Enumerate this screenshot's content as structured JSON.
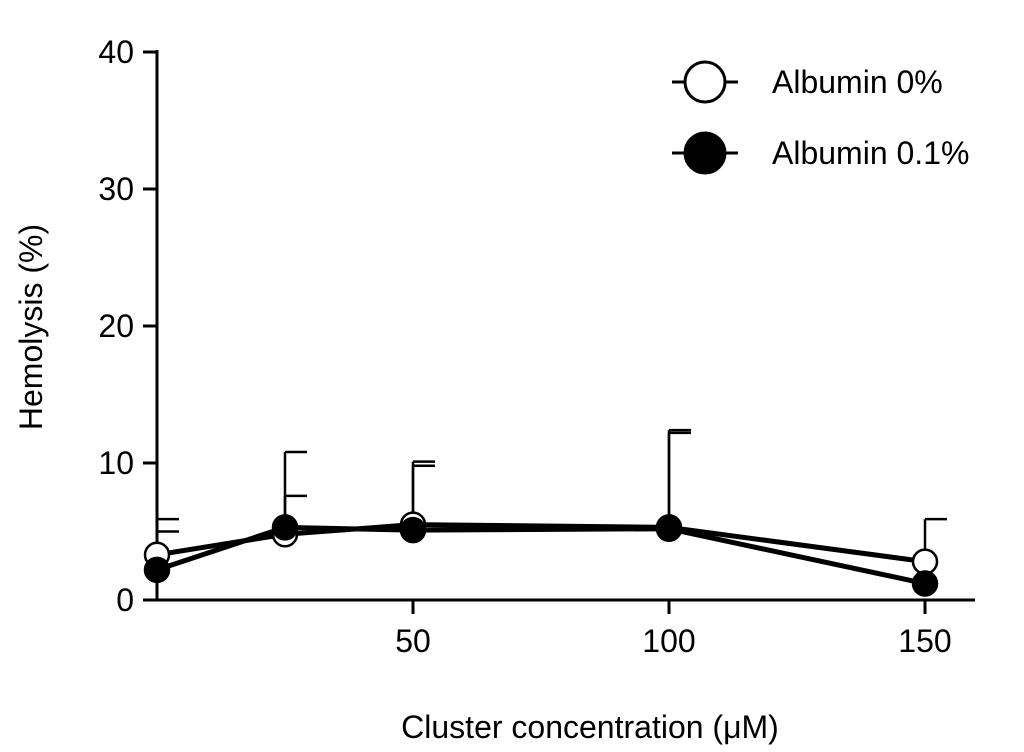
{
  "chart_data": {
    "type": "line",
    "xlabel": "Cluster concentration (μM)",
    "ylabel": "Hemolysis (%)",
    "xlim": [
      0,
      160
    ],
    "ylim": [
      0,
      40
    ],
    "xticks": [
      50,
      100,
      150
    ],
    "yticks": [
      0,
      10,
      20,
      30,
      40
    ],
    "grid": false,
    "legend_position": "top-right",
    "series": [
      {
        "name": "Albumin 0%",
        "marker": "open-circle",
        "x": [
          0,
          25,
          50,
          100,
          150
        ],
        "y": [
          3.3,
          4.8,
          5.5,
          5.3,
          2.8
        ],
        "err": [
          2.6,
          2.8,
          4.3,
          6.9,
          3.1
        ]
      },
      {
        "name": "Albumin 0.1%",
        "marker": "filled-circle",
        "x": [
          0,
          25,
          50,
          100,
          150
        ],
        "y": [
          2.2,
          5.3,
          5.1,
          5.2,
          1.2
        ],
        "err": [
          2.8,
          5.5,
          5.0,
          7.2,
          0
        ]
      }
    ]
  }
}
